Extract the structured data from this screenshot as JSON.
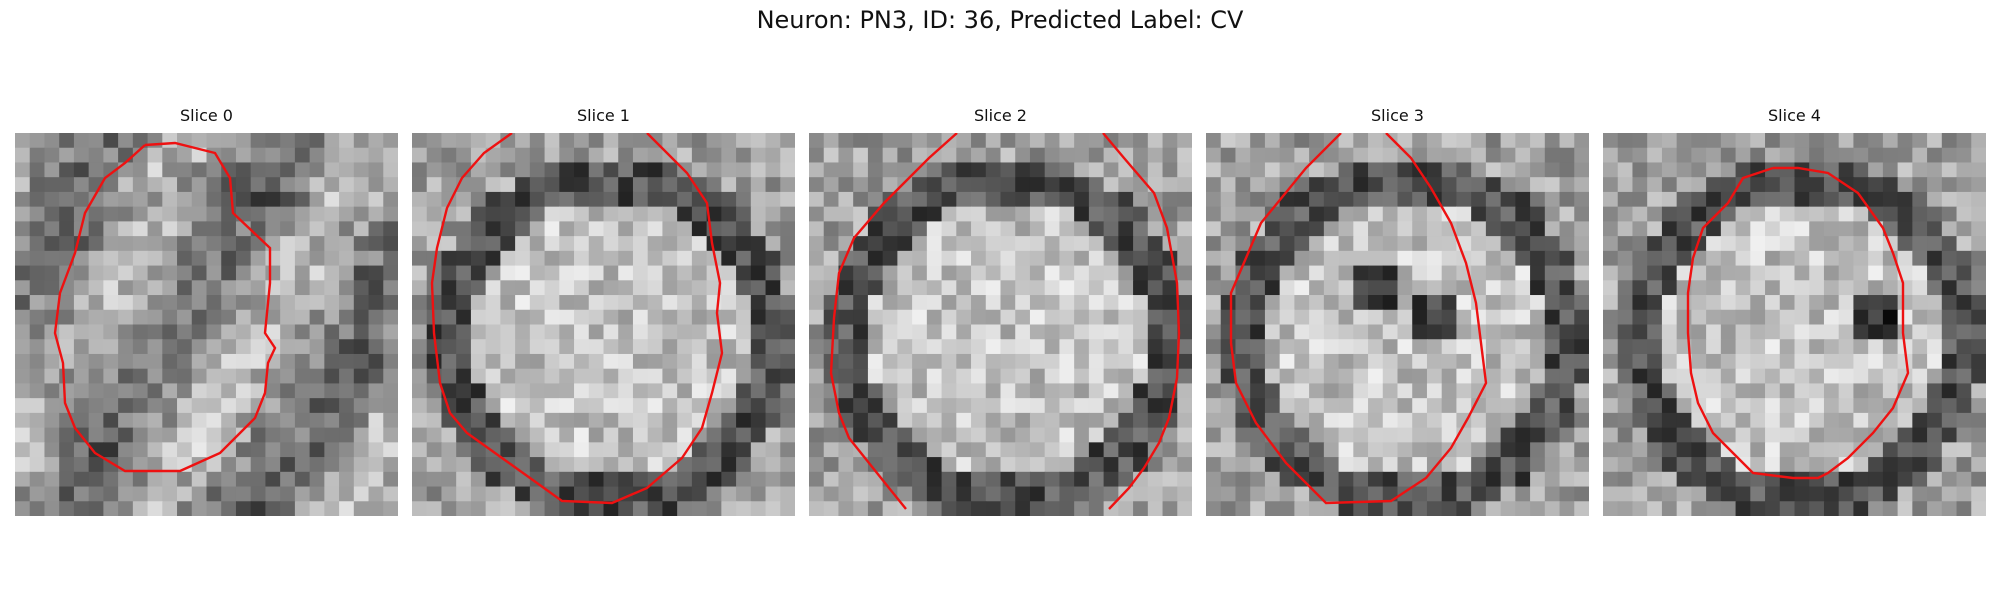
{
  "figure": {
    "title": "Neuron: PN3, ID: 36, Predicted Label: CV"
  },
  "contour_color": "#ee1111",
  "panels": [
    {
      "title": "Slice 0",
      "seed": 11,
      "ring": "dark-interior-band"
    },
    {
      "title": "Slice 1",
      "seed": 23,
      "ring": "bright-center"
    },
    {
      "title": "Slice 2",
      "seed": 37,
      "ring": "bright-center"
    },
    {
      "title": "Slice 3",
      "seed": 41,
      "ring": "mixed-dark-spots"
    },
    {
      "title": "Slice 4",
      "seed": 53,
      "ring": "bright-with-dark-spot"
    }
  ]
}
